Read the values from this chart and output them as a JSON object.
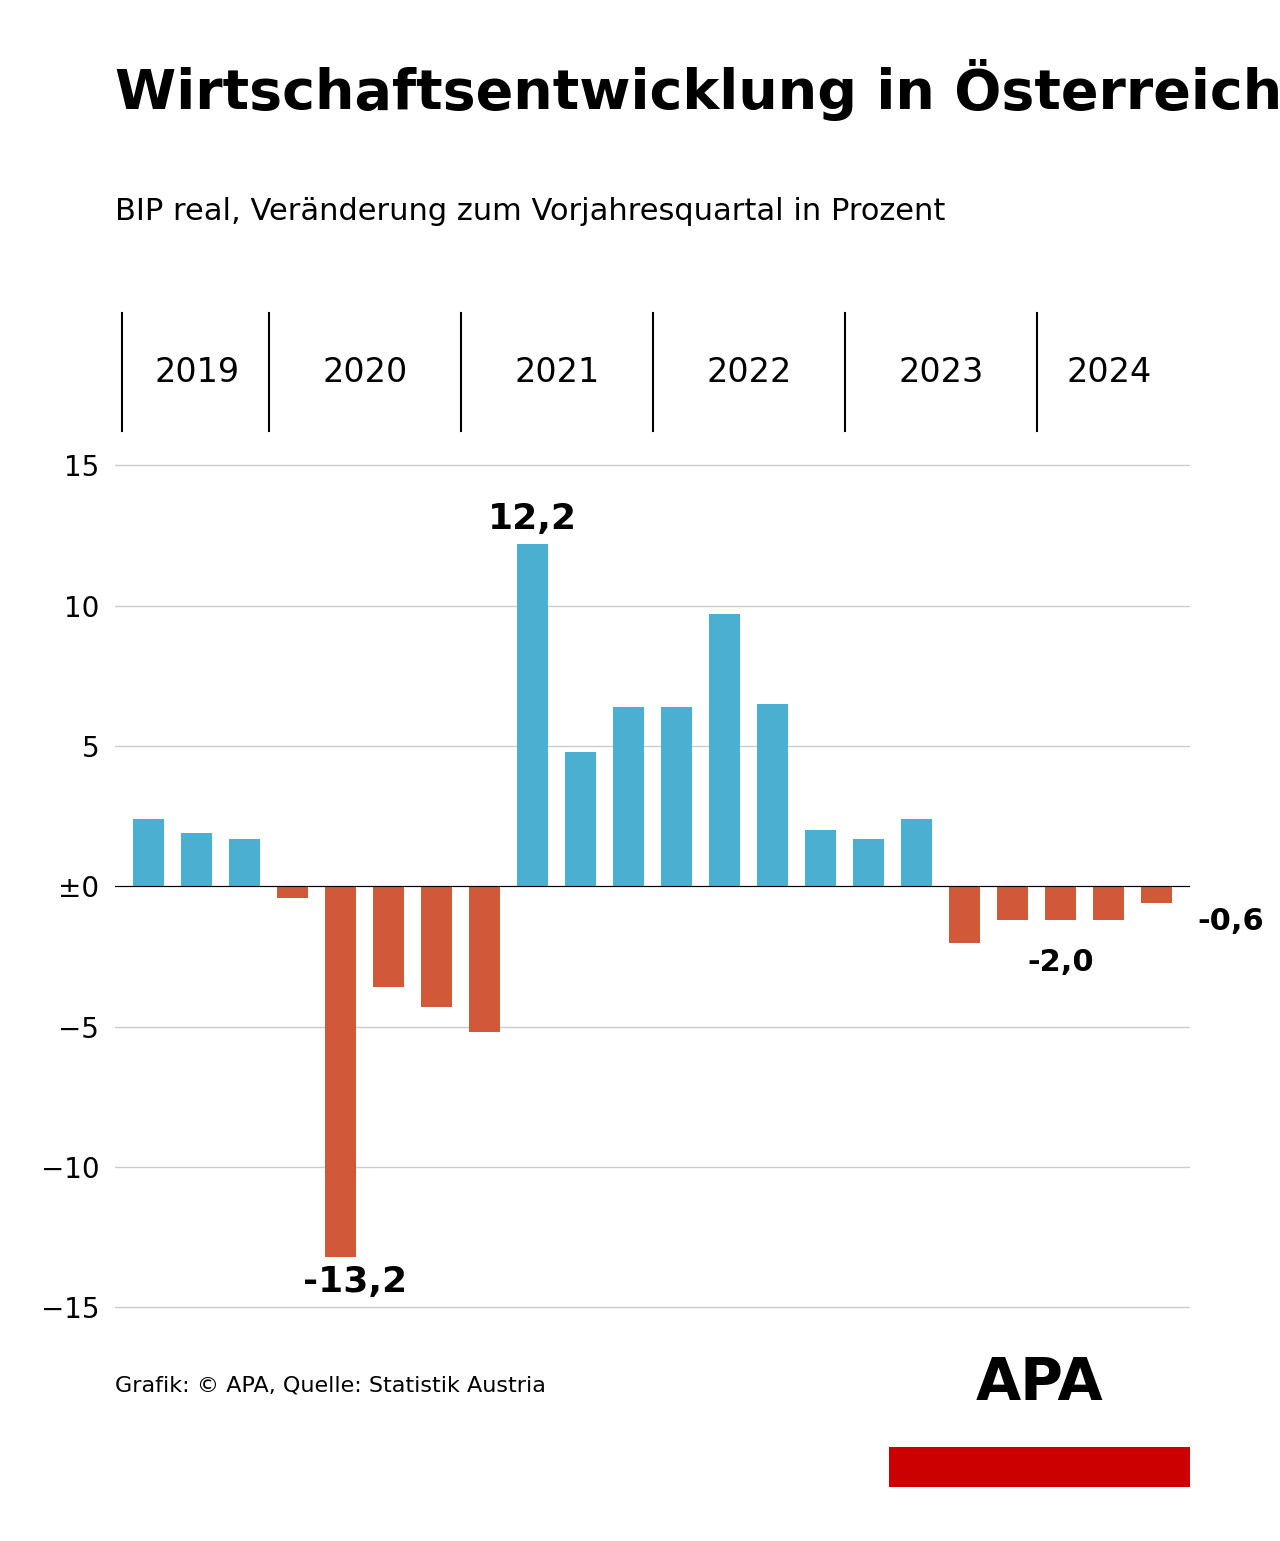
{
  "title": "Wirtschaftsentwicklung in Österreich",
  "subtitle": "BIP real, Veränderung zum Vorjahresquartal in Prozent",
  "source": "Grafik: © APA, Quelle: Statistik Austria",
  "years": [
    "2019",
    "2020",
    "2021",
    "2022",
    "2023",
    "2024"
  ],
  "values": [
    2.4,
    1.9,
    1.7,
    -0.4,
    -13.2,
    -3.6,
    -4.3,
    -5.2,
    12.2,
    4.8,
    6.4,
    6.4,
    9.7,
    6.5,
    2.0,
    1.7,
    2.4,
    -2.0,
    -1.2,
    -1.2,
    -1.2,
    -0.6
  ],
  "labels_special": {
    "4": "-13,2",
    "8": "12,2",
    "17": "-2,0",
    "21": "-0,6"
  },
  "color_positive": "#4BAFD1",
  "color_negative": "#D2583A",
  "bar_width": 0.65,
  "ylim": [
    -16,
    16
  ],
  "yticks": [
    -15,
    -10,
    -5,
    0,
    5,
    10,
    15
  ],
  "ytick_labels": [
    "−15",
    "−10",
    "−5",
    "±0",
    "5",
    "10",
    "15"
  ],
  "background_color": "#ffffff",
  "grid_color": "#cccccc",
  "title_fontsize": 40,
  "subtitle_fontsize": 22,
  "axis_fontsize": 20,
  "year_label_fontsize": 24,
  "annotation_fontsize": 22,
  "quarters_per_year": [
    3,
    4,
    4,
    4,
    4,
    3
  ],
  "apa_logo_color": "#CC0000"
}
